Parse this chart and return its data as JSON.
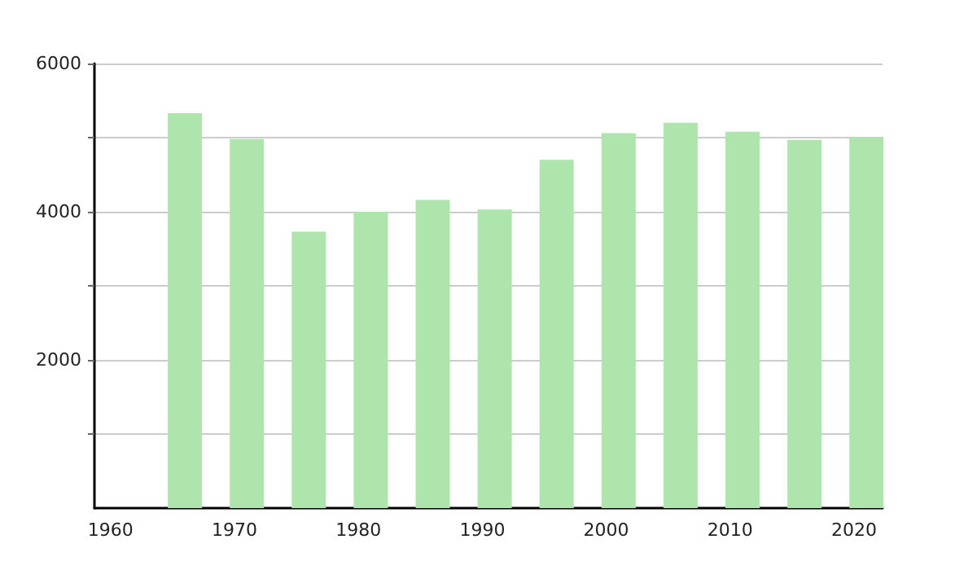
{
  "chart_data": {
    "type": "bar",
    "x": [
      1966,
      1971,
      1976,
      1981,
      1986,
      1991,
      1996,
      2001,
      2006,
      2011,
      2016,
      2021
    ],
    "values": [
      5330,
      4980,
      3730,
      4000,
      4160,
      4030,
      4700,
      5060,
      5200,
      5080,
      4970,
      5010
    ],
    "color": "#ade5ad",
    "xlim": [
      1958.7,
      2022.3
    ],
    "xticks": [
      1960,
      1970,
      1980,
      1990,
      2000,
      2010,
      2020
    ],
    "ylim": [
      0,
      6000
    ],
    "yticks": [
      {
        "value": 1000,
        "label": null
      },
      2000,
      {
        "value": 3000,
        "label": null
      },
      4000,
      {
        "value": 5000,
        "label": null
      },
      6000
    ],
    "grid": "y"
  }
}
